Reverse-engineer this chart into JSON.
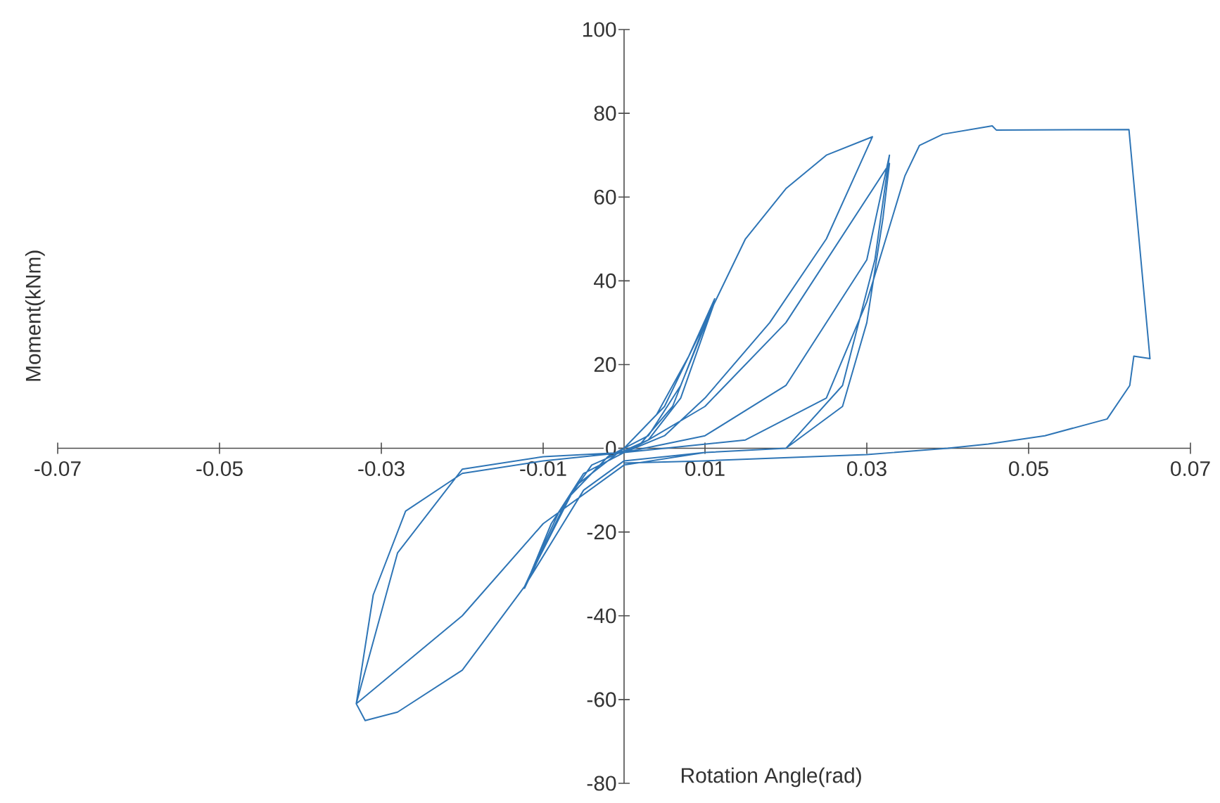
{
  "chart_data": {
    "type": "line",
    "xlabel": "Rotation Angle(rad)",
    "ylabel": "Moment(kNm)",
    "xlim": [
      -0.07,
      0.07
    ],
    "ylim": [
      -80,
      100
    ],
    "xticks": [
      -0.07,
      -0.05,
      -0.03,
      -0.01,
      0.01,
      0.03,
      0.05,
      0.07
    ],
    "yticks": [
      -80,
      -60,
      -40,
      -20,
      0,
      20,
      40,
      60,
      80,
      100
    ],
    "series": [
      {
        "color": "#2e75b6",
        "x": [
          0,
          0.004,
          0.008,
          0.0112,
          0.006,
          0.002,
          -0.005,
          -0.009,
          -0.0123,
          -0.007,
          -0.002,
          0.003,
          0.007,
          0.0112,
          0.007,
          0.003,
          -0.004,
          -0.008,
          -0.0123,
          -0.006,
          0,
          0.005,
          0.012,
          0.015,
          0.02,
          0.025,
          0.0307,
          0.025,
          0.018,
          0.01,
          0.005,
          0,
          -0.01,
          -0.02,
          -0.027,
          -0.031,
          -0.0331,
          -0.032,
          -0.028,
          -0.02,
          -0.0123,
          -0.005,
          0,
          0.01,
          0.02,
          0.027,
          0.03,
          0.032,
          0.0328,
          0.02,
          0.01,
          0.003,
          0,
          -0.01,
          -0.02,
          -0.028,
          -0.0331,
          -0.025,
          -0.02,
          -0.01,
          0,
          0.01,
          0.02,
          0.027,
          0.031,
          0.0328,
          0.03,
          0.02,
          0.01,
          0,
          0.015,
          0.025,
          0.03,
          0.0347,
          0.0365,
          0.0394,
          0.0446,
          0.0455,
          0.046,
          0.0624,
          0.065,
          0.063,
          0.0625,
          0.0597,
          0.052,
          0.045,
          0.04,
          0.03,
          0.01,
          0
        ],
        "values": [
          0,
          8,
          22,
          35.7,
          10,
          1,
          -6,
          -18,
          -33.4,
          -12,
          -2,
          3,
          15,
          35,
          12,
          2,
          -4,
          -15,
          -33,
          -9,
          0,
          10,
          38,
          50,
          62,
          70,
          74.4,
          50,
          30,
          12,
          3,
          -1,
          -3,
          -6,
          -15,
          -35,
          -61,
          -65,
          -63,
          -53,
          -33,
          -10,
          -3,
          -1,
          0,
          10,
          30,
          55,
          68,
          30,
          10,
          2,
          -1,
          -2,
          -5,
          -25,
          -61,
          -48,
          -40,
          -18,
          -4,
          -1,
          0,
          15,
          45,
          70,
          45,
          15,
          3,
          -1,
          2,
          12,
          35,
          65,
          72.3,
          75,
          76.7,
          77,
          76,
          76.1,
          21.4,
          22,
          15,
          7,
          3,
          1,
          0,
          -1.5,
          -3,
          -3.5
        ]
      }
    ]
  }
}
